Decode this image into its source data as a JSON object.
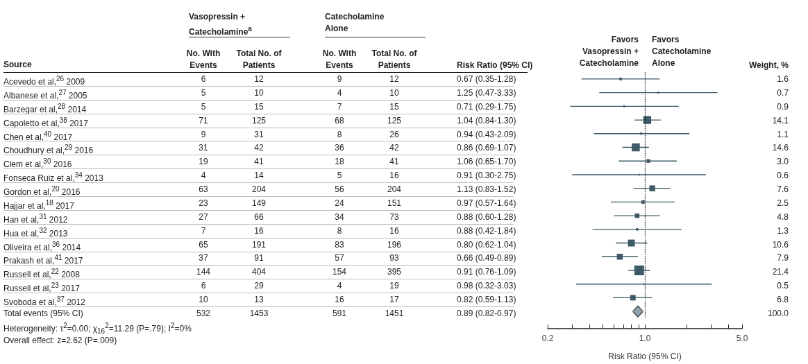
{
  "chart_data": [
    {
      "type": "other",
      "ylabel": "Source",
      "categories": [
        "No. With Events",
        "Total No. of Patients",
        "No. With Events",
        "Total No. of Patients",
        "Risk Ratio (95% CI)",
        "Weight, %"
      ],
      "y_categories": [
        "Acevedo et al,$^{26}$ 2009",
        "Albanese et al,$^{27}$ 2005",
        "Barzegar et al,$^{28}$ 2014",
        "Capoletto et al,$^{38}$ 2017",
        "Chen et al,$^{40}$ 2017",
        "Choudhury et al,$^{29}$ 2016",
        "Clem et al,$^{30}$ 2016",
        "Fonseca Ruiz et al,$^{34}$ 2013",
        "Gordon et al,$^{20}$ 2016",
        "Hajjar et al,$^{18}$ 2017",
        "Han et al,$^{31}$ 2012",
        "Hua et al,$^{32}$ 2013",
        "Oliveira et al,$^{36}$ 2014",
        "Prakash et al,$^{41}$ 2017",
        "Russell et al,$^{22}$ 2008",
        "Russell et al,$^{23}$ 2017",
        "Svoboda et al,$^{37}$ 2012",
        "Total events (95% CI)"
      ],
      "cell_labels": [
        [
          "6",
          "12",
          "9",
          "12",
          "0.67 (0.35-1.28)",
          "1.6"
        ],
        [
          "5",
          "10",
          "4",
          "10",
          "1.25 (0.47-3.33)",
          "0.7"
        ],
        [
          "5",
          "15",
          "7",
          "15",
          "0.71 (0.29-1.75)",
          "0.9"
        ],
        [
          "71",
          "125",
          "68",
          "125",
          "1.04 (0.84-1.30)",
          "14.1"
        ],
        [
          "9",
          "31",
          "8",
          "26",
          "0.94 (0.43-2.09)",
          "1.1"
        ],
        [
          "31",
          "42",
          "36",
          "42",
          "0.86 (0.69-1.07)",
          "14.6"
        ],
        [
          "19",
          "41",
          "18",
          "41",
          "1.06 (0.65-1.70)",
          "3.0"
        ],
        [
          "4",
          "14",
          "5",
          "16",
          "0.91 (0.30-2.75)",
          "0.6"
        ],
        [
          "63",
          "204",
          "56",
          "204",
          "1.13 (0.83-1.52)",
          "7.6"
        ],
        [
          "23",
          "149",
          "24",
          "151",
          "0.97 (0.57-1.64)",
          "2.5"
        ],
        [
          "27",
          "66",
          "34",
          "73",
          "0.88 (0.60-1.28)",
          "4.8"
        ],
        [
          "7",
          "16",
          "8",
          "16",
          "0.88 (0.42-1.84)",
          "1.3"
        ],
        [
          "65",
          "191",
          "83",
          "196",
          "0.80 (0.62-1.04)",
          "10.6"
        ],
        [
          "37",
          "91",
          "57",
          "93",
          "0.66 (0.49-0.89)",
          "7.9"
        ],
        [
          "144",
          "404",
          "154",
          "395",
          "0.91 (0.76-1.09)",
          "21.4"
        ],
        [
          "6",
          "29",
          "4",
          "19",
          "0.98 (0.32-3.03)",
          "0.5"
        ],
        [
          "10",
          "13",
          "16",
          "17",
          "0.82 (0.59-1.13)",
          "6.8"
        ],
        [
          "532",
          "1453",
          "591",
          "1451",
          "0.89 (0.82-0.97)",
          "100.0"
        ]
      ],
      "annotations": [
        "Vasopressin + Catecholamine$^{a}$",
        "Catecholamine Alone",
        "Heterogeneity: τ$^{2}$=0.00; χ$_{16}$$^{2}$=11.29 (P=.79); I$^{2}$=0%",
        "Overall effect: z=2.62 (P=.009)"
      ]
    },
    {
      "type": "scatter",
      "orientation": "horizontal",
      "log": "x",
      "xlabel": "Risk Ratio (95% CI)",
      "annotations": [
        "Favors Vasopressin + Catecholamine",
        "Favors Catecholamine Alone"
      ],
      "categories": [
        null,
        null,
        null,
        null,
        null,
        null,
        null,
        null,
        null,
        null,
        null,
        null,
        null,
        null,
        null,
        null,
        null,
        null
      ],
      "xlim": [
        0.2,
        5
      ],
      "xticks": [
        0.2,
        {
          "value": 0.3,
          "label": null
        },
        {
          "value": 0.4,
          "label": null
        },
        {
          "value": 0.5,
          "label": null
        },
        {
          "value": 0.6,
          "label": null
        },
        {
          "value": 0.7,
          "label": null
        },
        {
          "value": 0.8,
          "label": null
        },
        {
          "value": 0.9,
          "label": null
        },
        {
          "value": 1,
          "label": "1.0"
        },
        {
          "value": 2,
          "label": null
        },
        {
          "value": 3,
          "label": null
        },
        {
          "value": 4,
          "label": null
        },
        {
          "value": 5,
          "label": "5.0"
        }
      ],
      "ref_lines": [
        {
          "axis": "x",
          "value": 1,
          "line_style": "dotted",
          "color": "#222222"
        }
      ],
      "series": [
        {
          "type": "scatter",
          "marker": "square",
          "color": "#3d5a66",
          "values": [
            0.67,
            1.25,
            0.71,
            1.04,
            0.94,
            0.86,
            1.06,
            0.91,
            1.13,
            0.97,
            0.88,
            0.88,
            0.8,
            0.66,
            0.91,
            0.98,
            0.82,
            null
          ],
          "errors": [
            [
              0.35,
              1.28
            ],
            [
              0.47,
              3.33
            ],
            [
              0.29,
              1.75
            ],
            [
              0.84,
              1.3
            ],
            [
              0.43,
              2.09
            ],
            [
              0.69,
              1.07
            ],
            [
              0.65,
              1.7
            ],
            [
              0.3,
              2.75
            ],
            [
              0.83,
              1.52
            ],
            [
              0.57,
              1.64
            ],
            [
              0.6,
              1.28
            ],
            [
              0.42,
              1.84
            ],
            [
              0.62,
              1.04
            ],
            [
              0.49,
              0.89
            ],
            [
              0.76,
              1.09
            ],
            [
              0.32,
              3.03
            ],
            [
              0.59,
              1.13
            ],
            null
          ],
          "sizes": [
            0.075,
            0.033,
            0.042,
            0.66,
            0.051,
            0.68,
            0.14,
            0.028,
            0.36,
            0.12,
            0.22,
            0.061,
            0.5,
            0.37,
            1,
            0.023,
            0.32,
            null
          ]
        },
        {
          "type": "scatter",
          "marker": "diamond",
          "color": "#8ea3b0",
          "values": [
            null,
            null,
            null,
            null,
            null,
            null,
            null,
            null,
            null,
            null,
            null,
            null,
            null,
            null,
            null,
            null,
            null,
            0.89
          ],
          "errors": [
            null,
            null,
            null,
            null,
            null,
            null,
            null,
            null,
            null,
            null,
            null,
            null,
            null,
            null,
            null,
            null,
            null,
            [
              0.82,
              0.97
            ]
          ]
        }
      ]
    }
  ]
}
